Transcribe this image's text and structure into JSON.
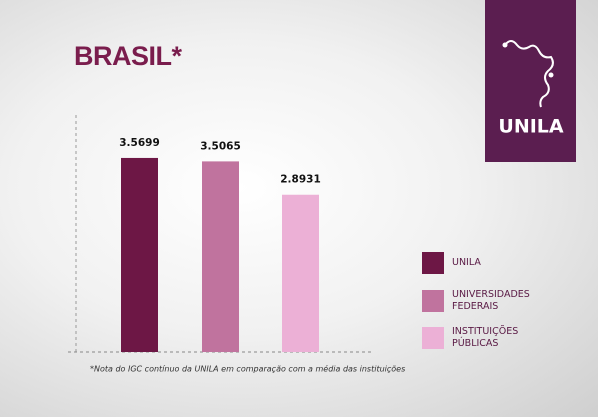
{
  "chart_data": {
    "type": "bar",
    "title": "BRASIL*",
    "categories": [
      "UNILA",
      "UNIVERSIDADES FEDERAIS",
      "INSTITUIÇÕES PÚBLICAS"
    ],
    "values": [
      3.5699,
      3.5065,
      2.8931
    ],
    "colors": [
      "#6d1745",
      "#c0739e",
      "#ecb0d6"
    ],
    "ylim": [
      0,
      4.36
    ],
    "logo": "UNILA",
    "footnote": "*Nota do IGC contínuo da UNILA em comparação com a média das instituições"
  }
}
